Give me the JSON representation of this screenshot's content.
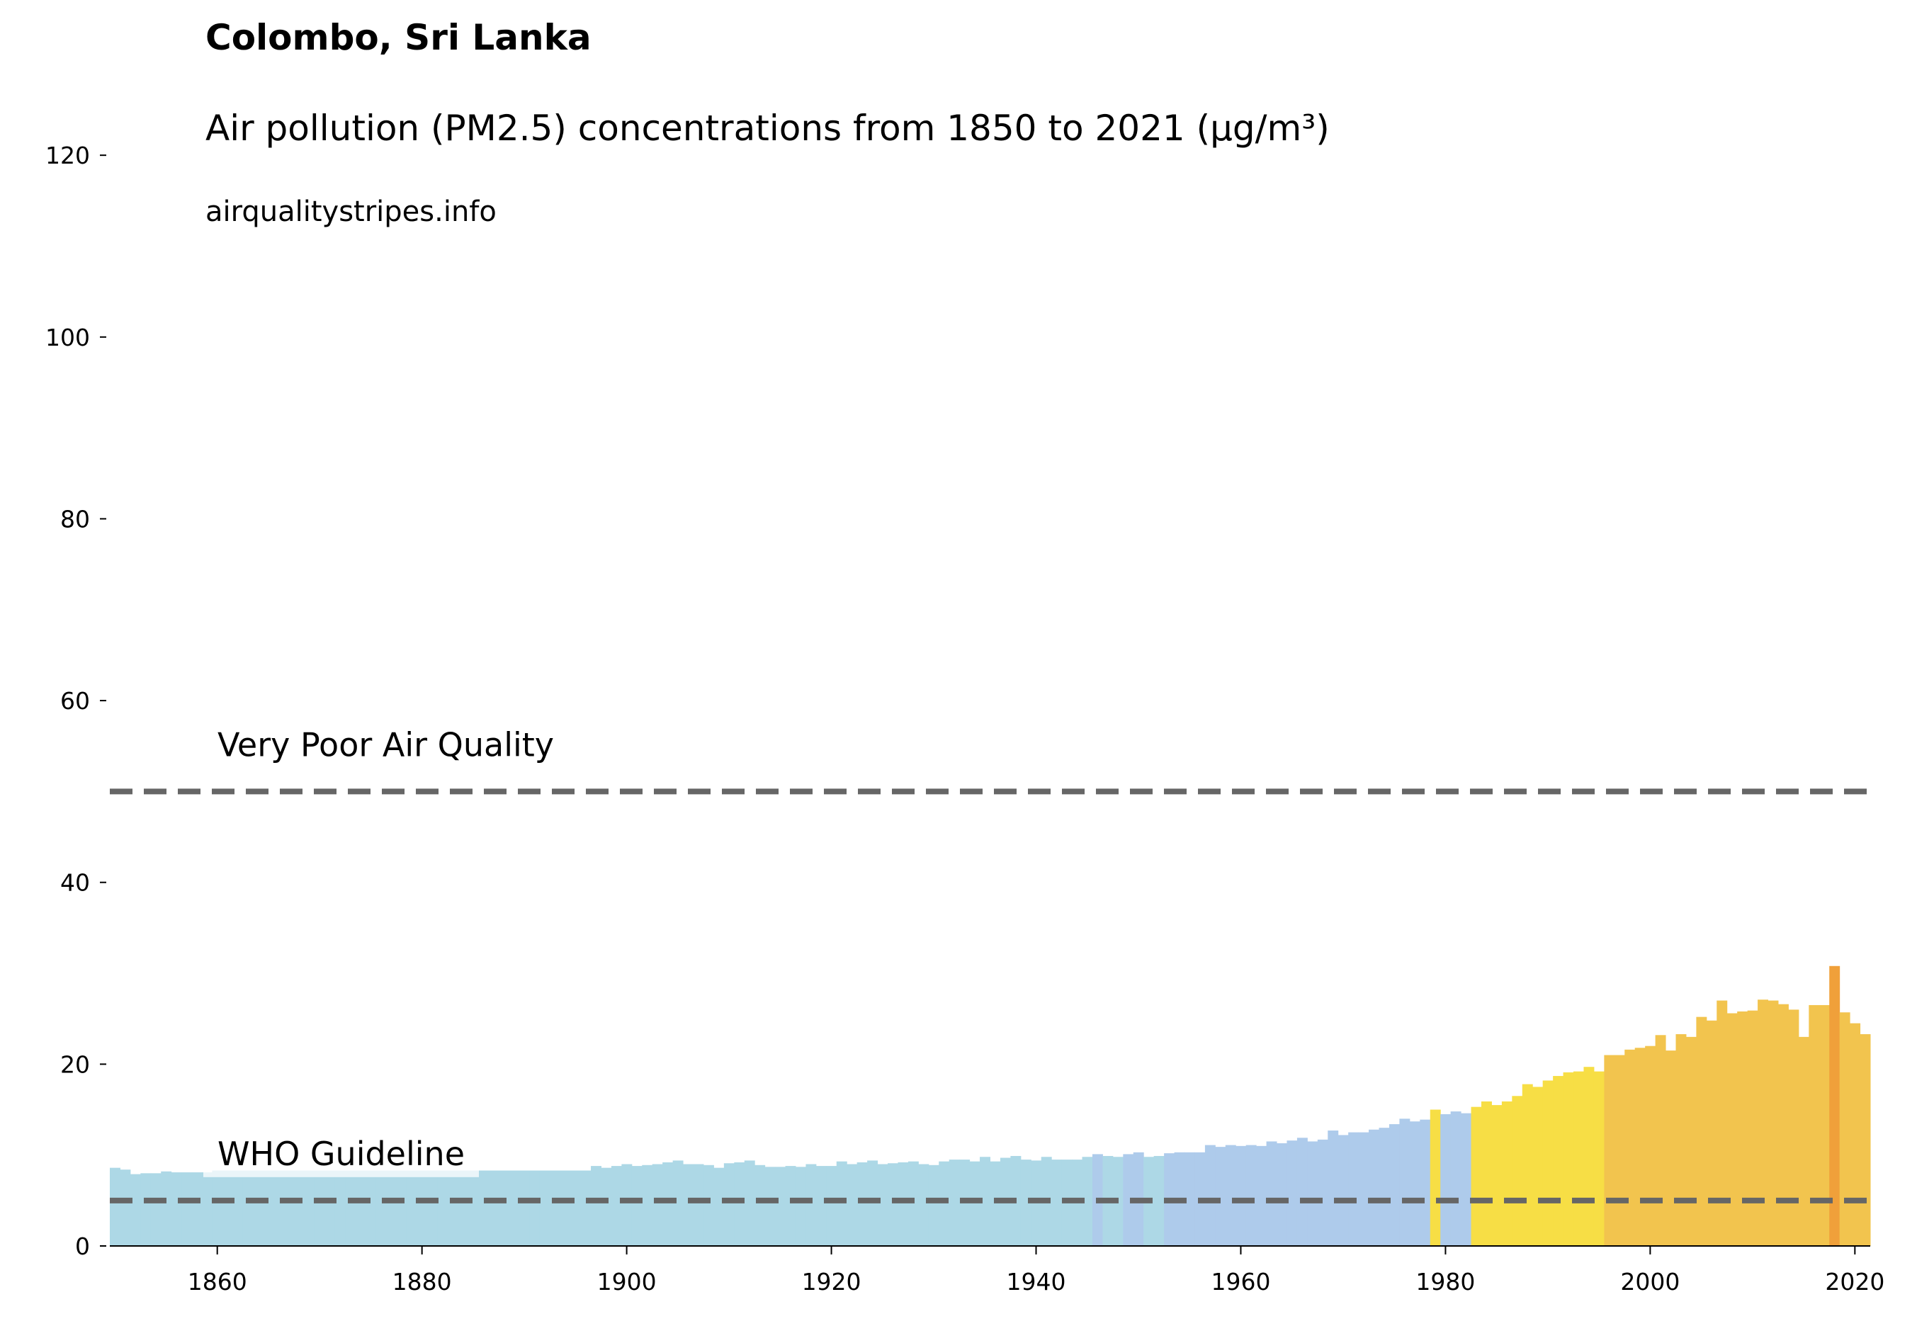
{
  "chart_data": {
    "type": "bar",
    "title": "Colombo, Sri Lanka",
    "subtitle": "Air pollution (PM2.5) concentrations from 1850 to 2021 (µg/m³)",
    "source": "airqualitystripes.info",
    "x": [
      1850,
      1851,
      1852,
      1853,
      1854,
      1855,
      1856,
      1857,
      1858,
      1859,
      1860,
      1861,
      1862,
      1863,
      1864,
      1865,
      1866,
      1867,
      1868,
      1869,
      1870,
      1871,
      1872,
      1873,
      1874,
      1875,
      1876,
      1877,
      1878,
      1879,
      1880,
      1881,
      1882,
      1883,
      1884,
      1885,
      1886,
      1887,
      1888,
      1889,
      1890,
      1891,
      1892,
      1893,
      1894,
      1895,
      1896,
      1897,
      1898,
      1899,
      1900,
      1901,
      1902,
      1903,
      1904,
      1905,
      1906,
      1907,
      1908,
      1909,
      1910,
      1911,
      1912,
      1913,
      1914,
      1915,
      1916,
      1917,
      1918,
      1919,
      1920,
      1921,
      1922,
      1923,
      1924,
      1925,
      1926,
      1927,
      1928,
      1929,
      1930,
      1931,
      1932,
      1933,
      1934,
      1935,
      1936,
      1937,
      1938,
      1939,
      1940,
      1941,
      1942,
      1943,
      1944,
      1945,
      1946,
      1947,
      1948,
      1949,
      1950,
      1951,
      1952,
      1953,
      1954,
      1955,
      1956,
      1957,
      1958,
      1959,
      1960,
      1961,
      1962,
      1963,
      1964,
      1965,
      1966,
      1967,
      1968,
      1969,
      1970,
      1971,
      1972,
      1973,
      1974,
      1975,
      1976,
      1977,
      1978,
      1979,
      1980,
      1981,
      1982,
      1983,
      1984,
      1985,
      1986,
      1987,
      1988,
      1989,
      1990,
      1991,
      1992,
      1993,
      1994,
      1995,
      1996,
      1997,
      1998,
      1999,
      2000,
      2001,
      2002,
      2003,
      2004,
      2005,
      2006,
      2007,
      2008,
      2009,
      2010,
      2011,
      2012,
      2013,
      2014,
      2015,
      2016,
      2017,
      2018,
      2019,
      2020,
      2021
    ],
    "values": [
      8.6,
      8.4,
      7.9,
      8.0,
      8.0,
      8.2,
      8.1,
      8.1,
      8.1,
      8.1,
      8.3,
      8.3,
      8.3,
      8.3,
      8.3,
      8.3,
      8.3,
      8.3,
      8.3,
      8.3,
      8.3,
      8.3,
      8.3,
      8.3,
      8.3,
      8.3,
      8.3,
      8.3,
      8.3,
      8.3,
      8.3,
      8.3,
      8.3,
      8.3,
      8.3,
      8.3,
      8.3,
      8.3,
      8.3,
      8.3,
      8.3,
      8.3,
      8.3,
      8.3,
      8.3,
      8.3,
      8.3,
      8.8,
      8.6,
      8.8,
      9.0,
      8.8,
      8.9,
      9.0,
      9.2,
      9.4,
      9.0,
      9.0,
      8.9,
      8.6,
      9.1,
      9.2,
      9.4,
      8.9,
      8.7,
      8.7,
      8.8,
      8.7,
      9.0,
      8.8,
      8.8,
      9.3,
      9.0,
      9.2,
      9.4,
      9.0,
      9.1,
      9.2,
      9.3,
      9.0,
      8.9,
      9.3,
      9.5,
      9.5,
      9.3,
      9.8,
      9.3,
      9.7,
      9.9,
      9.5,
      9.4,
      9.8,
      9.5,
      9.5,
      9.5,
      9.8,
      10.1,
      9.9,
      9.8,
      10.1,
      10.3,
      9.8,
      9.9,
      10.2,
      10.3,
      10.3,
      10.3,
      11.1,
      10.9,
      11.1,
      11.0,
      11.1,
      11.0,
      11.5,
      11.3,
      11.6,
      11.9,
      11.5,
      11.7,
      12.7,
      12.2,
      12.5,
      12.5,
      12.8,
      13.0,
      13.4,
      14.0,
      13.7,
      13.9,
      15.0,
      14.5,
      14.8,
      14.6,
      15.3,
      15.9,
      15.5,
      15.9,
      16.5,
      17.8,
      17.5,
      18.2,
      18.7,
      19.1,
      19.2,
      19.7,
      19.2,
      21.0,
      21.0,
      21.6,
      21.8,
      22.0,
      23.2,
      21.5,
      23.3,
      23.0,
      25.2,
      24.8,
      27.0,
      25.6,
      25.8,
      25.9,
      27.1,
      27.0,
      26.6,
      26.0,
      23.0,
      26.5,
      26.5,
      30.8,
      25.7,
      24.5,
      23.3
    ],
    "colors": [
      "#add8e6",
      "#add8e6",
      "#add8e6",
      "#add8e6",
      "#add8e6",
      "#add8e6",
      "#add8e6",
      "#add8e6",
      "#add8e6",
      "#add8e6",
      "#add8e6",
      "#add8e6",
      "#add8e6",
      "#add8e6",
      "#add8e6",
      "#add8e6",
      "#add8e6",
      "#add8e6",
      "#add8e6",
      "#add8e6",
      "#add8e6",
      "#add8e6",
      "#add8e6",
      "#add8e6",
      "#add8e6",
      "#add8e6",
      "#add8e6",
      "#add8e6",
      "#add8e6",
      "#add8e6",
      "#add8e6",
      "#add8e6",
      "#add8e6",
      "#add8e6",
      "#add8e6",
      "#add8e6",
      "#add8e6",
      "#add8e6",
      "#add8e6",
      "#add8e6",
      "#add8e6",
      "#add8e6",
      "#add8e6",
      "#add8e6",
      "#add8e6",
      "#add8e6",
      "#add8e6",
      "#add8e6",
      "#add8e6",
      "#add8e6",
      "#add8e6",
      "#add8e6",
      "#add8e6",
      "#add8e6",
      "#add8e6",
      "#add8e6",
      "#add8e6",
      "#add8e6",
      "#add8e6",
      "#add8e6",
      "#add8e6",
      "#add8e6",
      "#add8e6",
      "#add8e6",
      "#add8e6",
      "#add8e6",
      "#add8e6",
      "#add8e6",
      "#add8e6",
      "#add8e6",
      "#add8e6",
      "#add8e6",
      "#add8e6",
      "#add8e6",
      "#add8e6",
      "#add8e6",
      "#add8e6",
      "#add8e6",
      "#add8e6",
      "#add8e6",
      "#add8e6",
      "#add8e6",
      "#add8e6",
      "#add8e6",
      "#add8e6",
      "#add8e6",
      "#add8e6",
      "#add8e6",
      "#add8e6",
      "#add8e6",
      "#add8e6",
      "#add8e6",
      "#add8e6",
      "#add8e6",
      "#add8e6",
      "#add8e6",
      "#aecbeb",
      "#add8e6",
      "#add8e6",
      "#aecbeb",
      "#aecbeb",
      "#add8e6",
      "#add8e6",
      "#aecbeb",
      "#aecbeb",
      "#aecbeb",
      "#aecbeb",
      "#aecbeb",
      "#aecbeb",
      "#aecbeb",
      "#aecbeb",
      "#aecbeb",
      "#aecbeb",
      "#aecbeb",
      "#aecbeb",
      "#aecbeb",
      "#aecbeb",
      "#aecbeb",
      "#aecbeb",
      "#aecbeb",
      "#aecbeb",
      "#aecbeb",
      "#aecbeb",
      "#aecbeb",
      "#aecbeb",
      "#aecbeb",
      "#aecbeb",
      "#aecbeb",
      "#aecbeb",
      "#f7de45",
      "#aecbeb",
      "#aecbeb",
      "#aecbeb",
      "#f7de45",
      "#f7de45",
      "#f7de45",
      "#f7de45",
      "#f7de45",
      "#f7de45",
      "#f7de45",
      "#f7de45",
      "#f7de45",
      "#f7de45",
      "#f7de45",
      "#f7de45",
      "#f7de45",
      "#f2c44e",
      "#f2c44e",
      "#f2c44e",
      "#f2c44e",
      "#f2c44e",
      "#f2c44e",
      "#f2c44e",
      "#f2c44e",
      "#f2c44e",
      "#f2c44e",
      "#f2c44e",
      "#f2c44e",
      "#f2c44e",
      "#f2c44e",
      "#f2c44e",
      "#f2c44e",
      "#f2c44e",
      "#f2c44e",
      "#f2c44e",
      "#f2c44e",
      "#f2c44e",
      "#f2c44e",
      "#f0a03a",
      "#f2c44e",
      "#f2c44e",
      "#f2c44e"
    ],
    "reference_lines": [
      {
        "value": 5,
        "label": "WHO Guideline"
      },
      {
        "value": 50,
        "label": "Very Poor Air Quality"
      }
    ],
    "reference_color": "#666666",
    "xlim": [
      1849.5,
      2021.5
    ],
    "xticks": [
      1860,
      1880,
      1900,
      1920,
      1940,
      1960,
      1980,
      2000,
      2020
    ],
    "ylim": [
      0,
      125
    ],
    "yticks": [
      0,
      20,
      40,
      60,
      80,
      100,
      120
    ]
  }
}
